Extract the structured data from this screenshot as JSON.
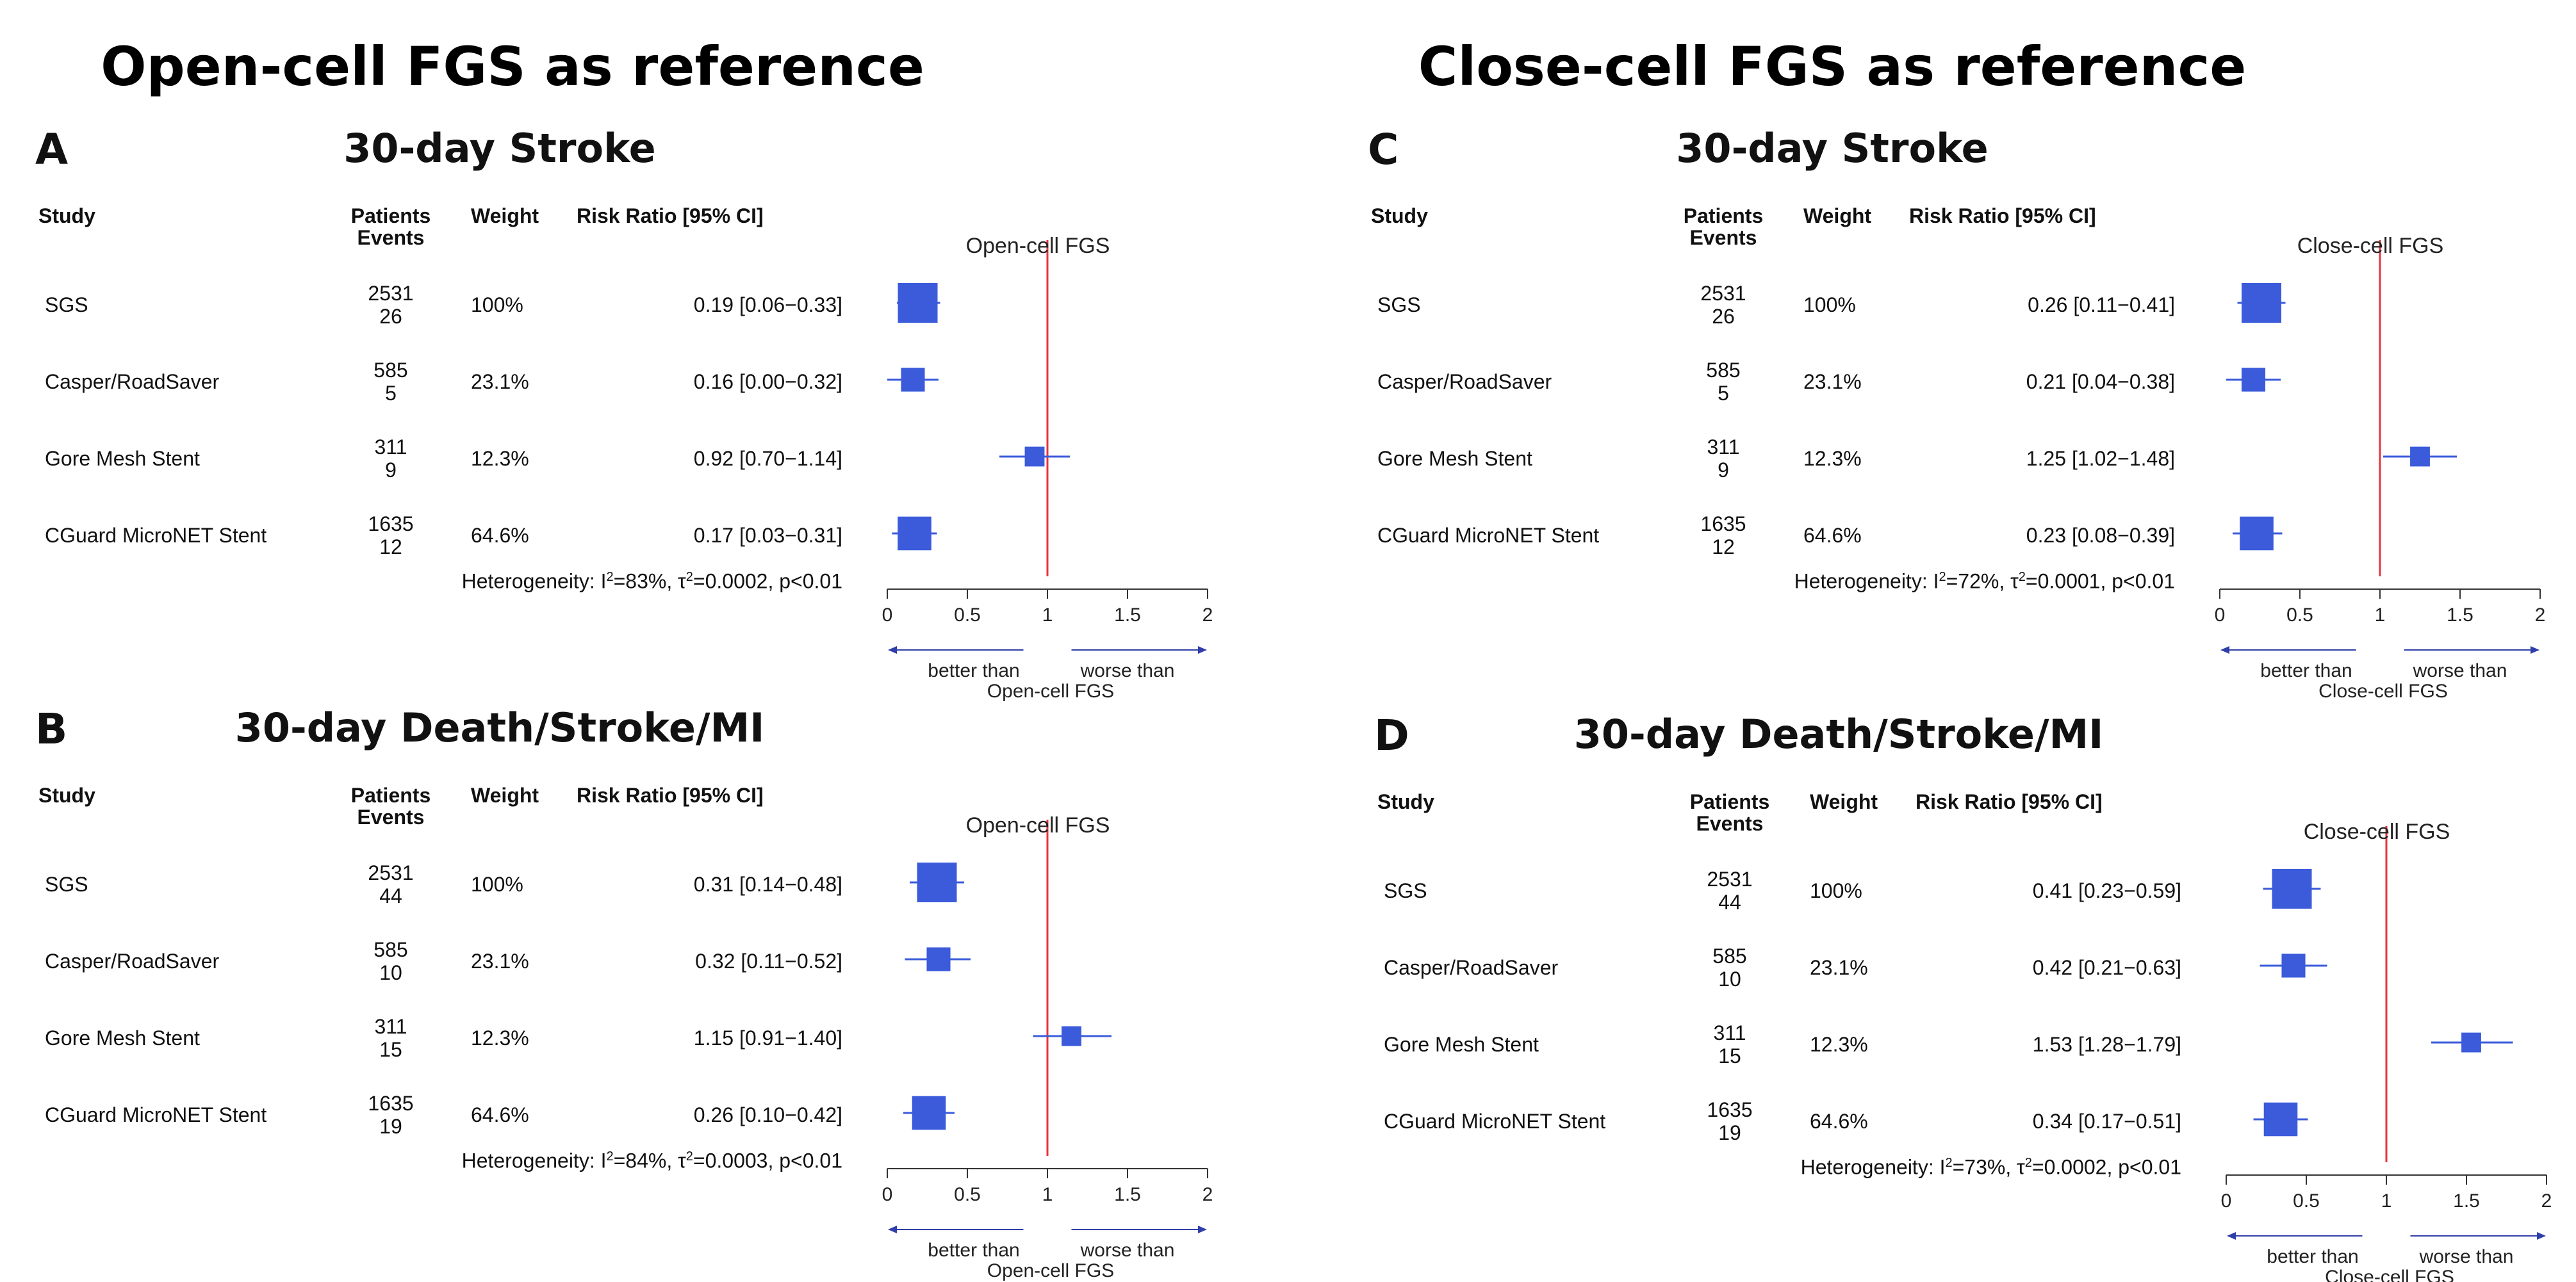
{
  "figure": {
    "left_title": "Open-cell FGS as reference",
    "right_title": "Close-cell FGS as reference"
  },
  "chart_data": [
    {
      "type": "forest",
      "panel": "A",
      "title": "30-day Stroke",
      "headers": {
        "study": "Study",
        "patients": "Patients",
        "events": "Events",
        "weight": "Weight",
        "rr": "Risk Ratio [95% CI]"
      },
      "rows": [
        {
          "study": "SGS",
          "patients": "2531",
          "events": "26",
          "weight": "100%",
          "rr_text": "0.19 [0.06−0.33]",
          "rr": 0.19,
          "lo": 0.06,
          "hi": 0.33,
          "w": 100
        },
        {
          "study": "Casper/RoadSaver",
          "patients": "585",
          "events": "5",
          "weight": "23.1%",
          "rr_text": "0.16 [0.00−0.32]",
          "rr": 0.16,
          "lo": 0.0,
          "hi": 0.32,
          "w": 23.1
        },
        {
          "study": "Gore Mesh Stent",
          "patients": "311",
          "events": "9",
          "weight": "12.3%",
          "rr_text": "0.92 [0.70−1.14]",
          "rr": 0.92,
          "lo": 0.7,
          "hi": 1.14,
          "w": 12.3
        },
        {
          "study": "CGuard MicroNET Stent",
          "patients": "1635",
          "events": "12",
          "weight": "64.6%",
          "rr_text": "0.17 [0.03−0.31]",
          "rr": 0.17,
          "lo": 0.03,
          "hi": 0.31,
          "w": 64.6
        }
      ],
      "heterogeneity": {
        "label": "Heterogeneity: I",
        "i2": "=83%, τ",
        "tau2": "=0.0002, p<0.01"
      },
      "reference_label": "Open-cell FGS",
      "reference_value": 1,
      "x_range": [
        0,
        2
      ],
      "x_ticks": [
        "0",
        "0.5",
        "1",
        "1.5",
        "2"
      ],
      "left_arrow_label": "better than",
      "right_arrow_label": "worse than",
      "bottom_label": "Open-cell FGS"
    },
    {
      "type": "forest",
      "panel": "B",
      "title": "30-day Death/Stroke/MI",
      "headers": {
        "study": "Study",
        "patients": "Patients",
        "events": "Events",
        "weight": "Weight",
        "rr": "Risk Ratio [95% CI]"
      },
      "rows": [
        {
          "study": "SGS",
          "patients": "2531",
          "events": "44",
          "weight": "100%",
          "rr_text": "0.31 [0.14−0.48]",
          "rr": 0.31,
          "lo": 0.14,
          "hi": 0.48,
          "w": 100
        },
        {
          "study": "Casper/RoadSaver",
          "patients": "585",
          "events": "10",
          "weight": "23.1%",
          "rr_text": "0.32 [0.11−0.52]",
          "rr": 0.32,
          "lo": 0.11,
          "hi": 0.52,
          "w": 23.1
        },
        {
          "study": "Gore Mesh Stent",
          "patients": "311",
          "events": "15",
          "weight": "12.3%",
          "rr_text": "1.15 [0.91−1.40]",
          "rr": 1.15,
          "lo": 0.91,
          "hi": 1.4,
          "w": 12.3
        },
        {
          "study": "CGuard MicroNET Stent",
          "patients": "1635",
          "events": "19",
          "weight": "64.6%",
          "rr_text": "0.26 [0.10−0.42]",
          "rr": 0.26,
          "lo": 0.1,
          "hi": 0.42,
          "w": 64.6
        }
      ],
      "heterogeneity": {
        "label": "Heterogeneity: I",
        "i2": "=84%, τ",
        "tau2": "=0.0003, p<0.01"
      },
      "reference_label": "Open-cell FGS",
      "reference_value": 1,
      "x_range": [
        0,
        2
      ],
      "x_ticks": [
        "0",
        "0.5",
        "1",
        "1.5",
        "2"
      ],
      "left_arrow_label": "better than",
      "right_arrow_label": "worse than",
      "bottom_label": "Open-cell FGS"
    },
    {
      "type": "forest",
      "panel": "C",
      "title": "30-day Stroke",
      "headers": {
        "study": "Study",
        "patients": "Patients",
        "events": "Events",
        "weight": "Weight",
        "rr": "Risk Ratio [95% CI]"
      },
      "rows": [
        {
          "study": "SGS",
          "patients": "2531",
          "events": "26",
          "weight": "100%",
          "rr_text": "0.26 [0.11−0.41]",
          "rr": 0.26,
          "lo": 0.11,
          "hi": 0.41,
          "w": 100
        },
        {
          "study": "Casper/RoadSaver",
          "patients": "585",
          "events": "5",
          "weight": "23.1%",
          "rr_text": "0.21 [0.04−0.38]",
          "rr": 0.21,
          "lo": 0.04,
          "hi": 0.38,
          "w": 23.1
        },
        {
          "study": "Gore Mesh Stent",
          "patients": "311",
          "events": "9",
          "weight": "12.3%",
          "rr_text": "1.25 [1.02−1.48]",
          "rr": 1.25,
          "lo": 1.02,
          "hi": 1.48,
          "w": 12.3
        },
        {
          "study": "CGuard MicroNET Stent",
          "patients": "1635",
          "events": "12",
          "weight": "64.6%",
          "rr_text": "0.23 [0.08−0.39]",
          "rr": 0.23,
          "lo": 0.08,
          "hi": 0.39,
          "w": 64.6
        }
      ],
      "heterogeneity": {
        "label": "Heterogeneity: I",
        "i2": "=72%, τ",
        "tau2": "=0.0001, p<0.01"
      },
      "reference_label": "Close-cell FGS",
      "reference_value": 1,
      "x_range": [
        0,
        2
      ],
      "x_ticks": [
        "0",
        "0.5",
        "1",
        "1.5",
        "2"
      ],
      "left_arrow_label": "better than",
      "right_arrow_label": "worse than",
      "bottom_label": "Close-cell FGS"
    },
    {
      "type": "forest",
      "panel": "D",
      "title": "30-day Death/Stroke/MI",
      "headers": {
        "study": "Study",
        "patients": "Patients",
        "events": "Events",
        "weight": "Weight",
        "rr": "Risk Ratio [95% CI]"
      },
      "rows": [
        {
          "study": "SGS",
          "patients": "2531",
          "events": "44",
          "weight": "100%",
          "rr_text": "0.41 [0.23−0.59]",
          "rr": 0.41,
          "lo": 0.23,
          "hi": 0.59,
          "w": 100
        },
        {
          "study": "Casper/RoadSaver",
          "patients": "585",
          "events": "10",
          "weight": "23.1%",
          "rr_text": "0.42 [0.21−0.63]",
          "rr": 0.42,
          "lo": 0.21,
          "hi": 0.63,
          "w": 23.1
        },
        {
          "study": "Gore Mesh Stent",
          "patients": "311",
          "events": "15",
          "weight": "12.3%",
          "rr_text": "1.53 [1.28−1.79]",
          "rr": 1.53,
          "lo": 1.28,
          "hi": 1.79,
          "w": 12.3
        },
        {
          "study": "CGuard MicroNET Stent",
          "patients": "1635",
          "events": "19",
          "weight": "64.6%",
          "rr_text": "0.34 [0.17−0.51]",
          "rr": 0.34,
          "lo": 0.17,
          "hi": 0.51,
          "w": 64.6
        }
      ],
      "heterogeneity": {
        "label": "Heterogeneity: I",
        "i2": "=73%, τ",
        "tau2": "=0.0002, p<0.01"
      },
      "reference_label": "Close-cell FGS",
      "reference_value": 1,
      "x_range": [
        0,
        2
      ],
      "x_ticks": [
        "0",
        "0.5",
        "1",
        "1.5",
        "2"
      ],
      "left_arrow_label": "better than",
      "right_arrow_label": "worse than",
      "bottom_label": "Close-cell FGS"
    }
  ],
  "colors": {
    "marker": "#3b5bdb",
    "ci_line": "#3b5bdb",
    "reference_line": "#e8333c",
    "axis": "#333333",
    "arrow": "#2f3ea8"
  }
}
